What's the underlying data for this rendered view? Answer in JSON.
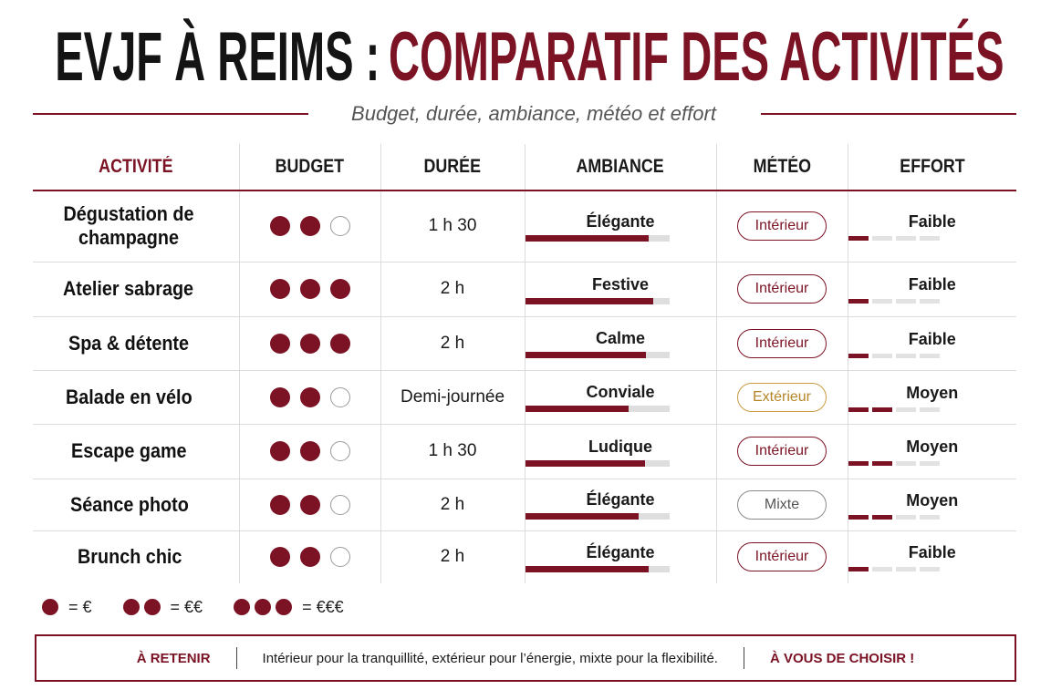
{
  "header": {
    "title_part1": "EVJF À REIMS :",
    "title_part2": "COMPARATIF DES ACTIVITÉS",
    "subtitle": "Budget, durée, ambiance, météo et effort"
  },
  "colors": {
    "accent": "#7b1324",
    "exterior": "#c79a3e",
    "mixte": "#8a8a8a",
    "track": "#dedede"
  },
  "table": {
    "headers": [
      "ACTIVITÉ",
      "BUDGET",
      "DURÉE",
      "AMBIANCE",
      "MÉTÉO",
      "EFFORT"
    ],
    "rows": [
      {
        "activity": "Dégustation de champagne",
        "budget": 2,
        "duration": "1 h 30",
        "ambiance": "Élégante",
        "ambiance_level": 0.86,
        "weather": "Intérieur",
        "weather_kind": "int",
        "effort": "Faible",
        "effort_level": 1
      },
      {
        "activity": "Atelier sabrage",
        "budget": 3,
        "duration": "2 h",
        "ambiance": "Festive",
        "ambiance_level": 0.89,
        "weather": "Intérieur",
        "weather_kind": "int",
        "effort": "Faible",
        "effort_level": 1
      },
      {
        "activity": "Spa & détente",
        "budget": 3,
        "duration": "2 h",
        "ambiance": "Calme",
        "ambiance_level": 0.84,
        "weather": "Intérieur",
        "weather_kind": "int",
        "effort": "Faible",
        "effort_level": 1
      },
      {
        "activity": "Balade en vélo",
        "budget": 2,
        "duration": "Demi-journée",
        "ambiance": "Conviale",
        "ambiance_level": 0.72,
        "weather": "Extérieur",
        "weather_kind": "ext",
        "effort": "Moyen",
        "effort_level": 2
      },
      {
        "activity": "Escape game",
        "budget": 2,
        "duration": "1 h 30",
        "ambiance": "Ludique",
        "ambiance_level": 0.83,
        "weather": "Intérieur",
        "weather_kind": "int",
        "effort": "Moyen",
        "effort_level": 2
      },
      {
        "activity": "Séance photo",
        "budget": 2,
        "duration": "2 h",
        "ambiance": "Élégante",
        "ambiance_level": 0.79,
        "weather": "Mixte",
        "weather_kind": "mix",
        "effort": "Moyen",
        "effort_level": 2
      },
      {
        "activity": "Brunch chic",
        "budget": 2,
        "duration": "2 h",
        "ambiance": "Élégante",
        "ambiance_level": 0.86,
        "weather": "Intérieur",
        "weather_kind": "int",
        "effort": "Faible",
        "effort_level": 1
      }
    ],
    "budget_max": 3,
    "effort_max": 4
  },
  "legend": [
    {
      "dots": 1,
      "label": "= €"
    },
    {
      "dots": 2,
      "label": "= €€"
    },
    {
      "dots": 3,
      "label": "= €€€"
    }
  ],
  "footer": {
    "left": "À RETENIR",
    "middle": "Intérieur pour la tranquillité, extérieur pour l’énergie, mixte pour la flexibilité.",
    "right": "À VOUS DE CHOISIR !"
  }
}
